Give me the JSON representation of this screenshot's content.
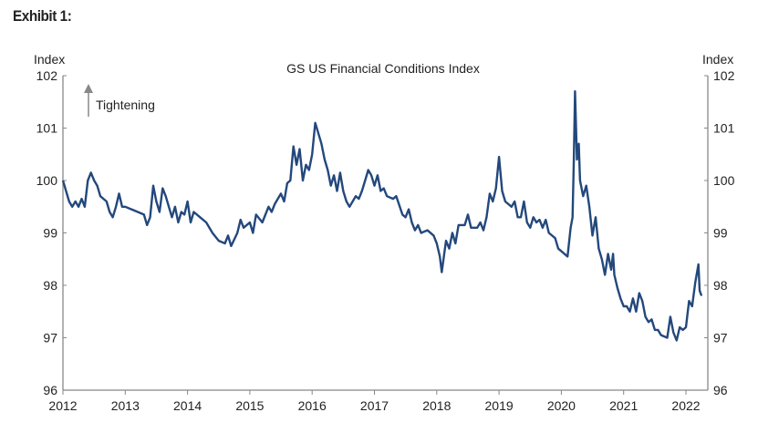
{
  "exhibit_label": "Exhibit 1:",
  "chart_data": {
    "type": "line",
    "title": "GS US Financial Conditions Index",
    "ylabel_left": "Index",
    "ylabel_right": "Index",
    "annotation": "Tightening",
    "ylim": [
      96,
      102
    ],
    "xlim": [
      2012,
      2022.35
    ],
    "yticks": [
      "96",
      "97",
      "98",
      "99",
      "100",
      "101",
      "102"
    ],
    "xticks": [
      "2012",
      "2013",
      "2014",
      "2015",
      "2016",
      "2017",
      "2018",
      "2019",
      "2020",
      "2021",
      "2022"
    ],
    "grid": false,
    "line_color": "#23487c",
    "series": [
      {
        "name": "GS US Financial Conditions Index",
        "points": [
          [
            2012.0,
            100.0
          ],
          [
            2012.05,
            99.8
          ],
          [
            2012.1,
            99.6
          ],
          [
            2012.15,
            99.5
          ],
          [
            2012.2,
            99.6
          ],
          [
            2012.25,
            99.5
          ],
          [
            2012.3,
            99.65
          ],
          [
            2012.35,
            99.5
          ],
          [
            2012.4,
            100.0
          ],
          [
            2012.45,
            100.15
          ],
          [
            2012.5,
            100.0
          ],
          [
            2012.55,
            99.9
          ],
          [
            2012.6,
            99.7
          ],
          [
            2012.7,
            99.6
          ],
          [
            2012.75,
            99.4
          ],
          [
            2012.8,
            99.3
          ],
          [
            2012.85,
            99.5
          ],
          [
            2012.9,
            99.75
          ],
          [
            2012.95,
            99.5
          ],
          [
            2013.0,
            99.5
          ],
          [
            2013.1,
            99.45
          ],
          [
            2013.2,
            99.4
          ],
          [
            2013.3,
            99.35
          ],
          [
            2013.35,
            99.15
          ],
          [
            2013.4,
            99.3
          ],
          [
            2013.45,
            99.9
          ],
          [
            2013.5,
            99.6
          ],
          [
            2013.55,
            99.4
          ],
          [
            2013.6,
            99.85
          ],
          [
            2013.65,
            99.7
          ],
          [
            2013.7,
            99.5
          ],
          [
            2013.75,
            99.3
          ],
          [
            2013.8,
            99.5
          ],
          [
            2013.85,
            99.2
          ],
          [
            2013.9,
            99.4
          ],
          [
            2013.95,
            99.35
          ],
          [
            2014.0,
            99.6
          ],
          [
            2014.05,
            99.2
          ],
          [
            2014.1,
            99.4
          ],
          [
            2014.2,
            99.3
          ],
          [
            2014.3,
            99.2
          ],
          [
            2014.4,
            99.0
          ],
          [
            2014.5,
            98.85
          ],
          [
            2014.6,
            98.8
          ],
          [
            2014.65,
            98.95
          ],
          [
            2014.7,
            98.75
          ],
          [
            2014.8,
            99.0
          ],
          [
            2014.85,
            99.25
          ],
          [
            2014.9,
            99.1
          ],
          [
            2015.0,
            99.2
          ],
          [
            2015.05,
            99.0
          ],
          [
            2015.1,
            99.35
          ],
          [
            2015.2,
            99.2
          ],
          [
            2015.3,
            99.5
          ],
          [
            2015.35,
            99.4
          ],
          [
            2015.4,
            99.55
          ],
          [
            2015.5,
            99.75
          ],
          [
            2015.55,
            99.6
          ],
          [
            2015.6,
            99.95
          ],
          [
            2015.65,
            100.0
          ],
          [
            2015.7,
            100.65
          ],
          [
            2015.75,
            100.3
          ],
          [
            2015.8,
            100.6
          ],
          [
            2015.85,
            100.0
          ],
          [
            2015.9,
            100.3
          ],
          [
            2015.95,
            100.2
          ],
          [
            2016.0,
            100.5
          ],
          [
            2016.05,
            101.1
          ],
          [
            2016.1,
            100.9
          ],
          [
            2016.15,
            100.7
          ],
          [
            2016.2,
            100.4
          ],
          [
            2016.25,
            100.2
          ],
          [
            2016.3,
            99.9
          ],
          [
            2016.35,
            100.1
          ],
          [
            2016.4,
            99.8
          ],
          [
            2016.45,
            100.15
          ],
          [
            2016.5,
            99.8
          ],
          [
            2016.55,
            99.6
          ],
          [
            2016.6,
            99.5
          ],
          [
            2016.65,
            99.6
          ],
          [
            2016.7,
            99.7
          ],
          [
            2016.75,
            99.65
          ],
          [
            2016.8,
            99.8
          ],
          [
            2016.85,
            100.0
          ],
          [
            2016.9,
            100.2
          ],
          [
            2016.95,
            100.1
          ],
          [
            2017.0,
            99.9
          ],
          [
            2017.05,
            100.1
          ],
          [
            2017.1,
            99.8
          ],
          [
            2017.15,
            99.85
          ],
          [
            2017.2,
            99.7
          ],
          [
            2017.3,
            99.65
          ],
          [
            2017.35,
            99.7
          ],
          [
            2017.45,
            99.35
          ],
          [
            2017.5,
            99.3
          ],
          [
            2017.55,
            99.45
          ],
          [
            2017.6,
            99.2
          ],
          [
            2017.65,
            99.05
          ],
          [
            2017.7,
            99.15
          ],
          [
            2017.75,
            99.0
          ],
          [
            2017.85,
            99.05
          ],
          [
            2017.95,
            98.95
          ],
          [
            2018.0,
            98.8
          ],
          [
            2018.05,
            98.55
          ],
          [
            2018.08,
            98.25
          ],
          [
            2018.12,
            98.6
          ],
          [
            2018.15,
            98.85
          ],
          [
            2018.2,
            98.7
          ],
          [
            2018.25,
            99.0
          ],
          [
            2018.3,
            98.8
          ],
          [
            2018.35,
            99.15
          ],
          [
            2018.45,
            99.15
          ],
          [
            2018.5,
            99.35
          ],
          [
            2018.55,
            99.1
          ],
          [
            2018.65,
            99.1
          ],
          [
            2018.7,
            99.2
          ],
          [
            2018.75,
            99.05
          ],
          [
            2018.8,
            99.3
          ],
          [
            2018.85,
            99.75
          ],
          [
            2018.9,
            99.6
          ],
          [
            2018.95,
            99.85
          ],
          [
            2019.0,
            100.45
          ],
          [
            2019.05,
            99.8
          ],
          [
            2019.1,
            99.6
          ],
          [
            2019.2,
            99.5
          ],
          [
            2019.25,
            99.6
          ],
          [
            2019.3,
            99.3
          ],
          [
            2019.35,
            99.3
          ],
          [
            2019.4,
            99.6
          ],
          [
            2019.45,
            99.2
          ],
          [
            2019.5,
            99.1
          ],
          [
            2019.55,
            99.3
          ],
          [
            2019.6,
            99.2
          ],
          [
            2019.65,
            99.25
          ],
          [
            2019.7,
            99.1
          ],
          [
            2019.75,
            99.25
          ],
          [
            2019.8,
            99.0
          ],
          [
            2019.9,
            98.9
          ],
          [
            2019.95,
            98.7
          ],
          [
            2020.0,
            98.65
          ],
          [
            2020.1,
            98.55
          ],
          [
            2020.15,
            99.1
          ],
          [
            2020.18,
            99.3
          ],
          [
            2020.2,
            100.4
          ],
          [
            2020.22,
            101.7
          ],
          [
            2020.25,
            100.4
          ],
          [
            2020.28,
            100.7
          ],
          [
            2020.3,
            100.0
          ],
          [
            2020.35,
            99.7
          ],
          [
            2020.4,
            99.9
          ],
          [
            2020.45,
            99.5
          ],
          [
            2020.5,
            98.95
          ],
          [
            2020.55,
            99.3
          ],
          [
            2020.6,
            98.7
          ],
          [
            2020.65,
            98.5
          ],
          [
            2020.7,
            98.2
          ],
          [
            2020.75,
            98.6
          ],
          [
            2020.8,
            98.3
          ],
          [
            2020.83,
            98.6
          ],
          [
            2020.85,
            98.2
          ],
          [
            2020.9,
            97.95
          ],
          [
            2020.95,
            97.75
          ],
          [
            2021.0,
            97.6
          ],
          [
            2021.05,
            97.6
          ],
          [
            2021.1,
            97.5
          ],
          [
            2021.15,
            97.75
          ],
          [
            2021.2,
            97.5
          ],
          [
            2021.25,
            97.85
          ],
          [
            2021.3,
            97.7
          ],
          [
            2021.35,
            97.4
          ],
          [
            2021.4,
            97.3
          ],
          [
            2021.45,
            97.35
          ],
          [
            2021.5,
            97.15
          ],
          [
            2021.55,
            97.15
          ],
          [
            2021.6,
            97.05
          ],
          [
            2021.7,
            97.0
          ],
          [
            2021.75,
            97.4
          ],
          [
            2021.8,
            97.1
          ],
          [
            2021.85,
            96.95
          ],
          [
            2021.9,
            97.2
          ],
          [
            2021.95,
            97.15
          ],
          [
            2022.0,
            97.2
          ],
          [
            2022.05,
            97.7
          ],
          [
            2022.1,
            97.6
          ],
          [
            2022.15,
            98.05
          ],
          [
            2022.2,
            98.4
          ],
          [
            2022.22,
            97.9
          ],
          [
            2022.25,
            97.8
          ]
        ]
      }
    ]
  }
}
